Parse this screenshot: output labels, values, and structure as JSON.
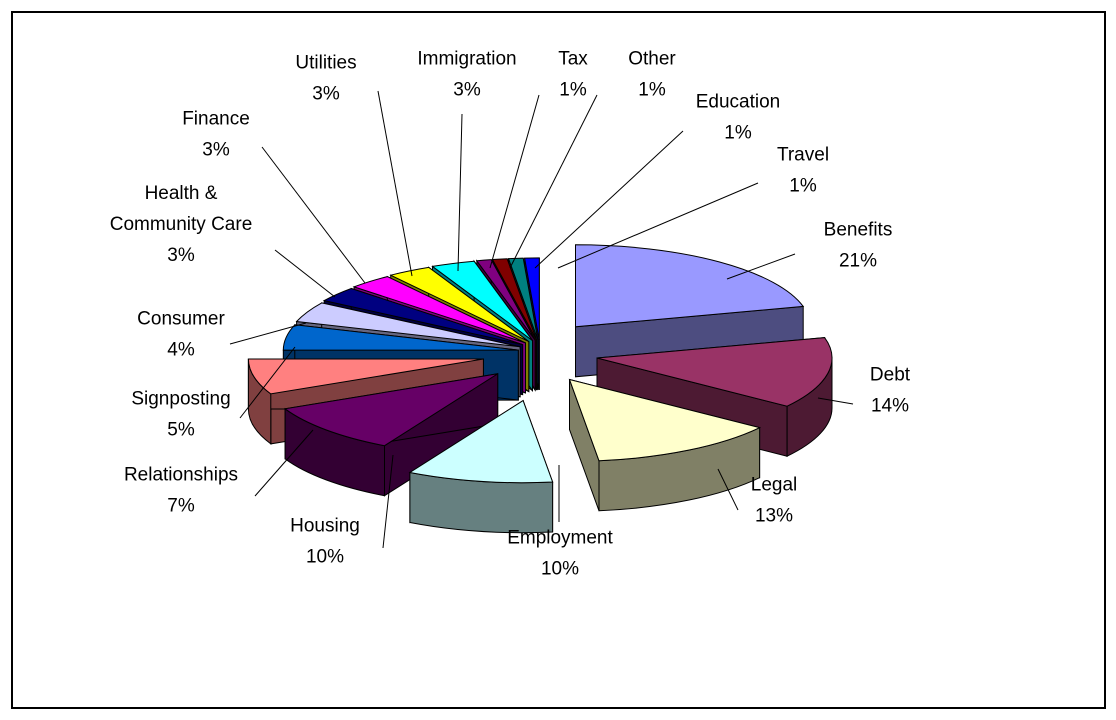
{
  "chart_data": {
    "type": "pie",
    "title": "",
    "style": "3d-exploded",
    "legend": "none",
    "slices": [
      {
        "label": "Benefits",
        "value": 21,
        "value_label": "21%",
        "color": "#9999ff",
        "side": "#4d4d80"
      },
      {
        "label": "Debt",
        "value": 14,
        "value_label": "14%",
        "color": "#993366",
        "side": "#4d1a33"
      },
      {
        "label": "Legal",
        "value": 13,
        "value_label": "13%",
        "color": "#ffffcc",
        "side": "#808066"
      },
      {
        "label": "Employment",
        "value": 10,
        "value_label": "10%",
        "color": "#ccffff",
        "side": "#668080"
      },
      {
        "label": "Housing",
        "value": 10,
        "value_label": "10%",
        "color": "#660066",
        "side": "#330033"
      },
      {
        "label": "Relationships",
        "value": 7,
        "value_label": "7%",
        "color": "#ff8080",
        "side": "#804040"
      },
      {
        "label": "Signposting",
        "value": 5,
        "value_label": "5%",
        "color": "#0066cc",
        "side": "#003366"
      },
      {
        "label": "Consumer",
        "value": 4,
        "value_label": "4%",
        "color": "#ccccff",
        "side": "#666680"
      },
      {
        "label": "Health & Community Care",
        "value": 3,
        "value_label": "3%",
        "color": "#000080",
        "side": "#000040"
      },
      {
        "label": "Finance",
        "value": 3,
        "value_label": "3%",
        "color": "#ff00ff",
        "side": "#800080"
      },
      {
        "label": "Utilities",
        "value": 3,
        "value_label": "3%",
        "color": "#ffff00",
        "side": "#808000"
      },
      {
        "label": "Immigration",
        "value": 3,
        "value_label": "3%",
        "color": "#00ffff",
        "side": "#008080"
      },
      {
        "label": "Tax",
        "value": 1,
        "value_label": "1%",
        "color": "#800080",
        "side": "#400040"
      },
      {
        "label": "Other",
        "value": 1,
        "value_label": "1%",
        "color": "#800000",
        "side": "#400000"
      },
      {
        "label": "Education",
        "value": 1,
        "value_label": "1%",
        "color": "#008080",
        "side": "#004040"
      },
      {
        "label": "Travel",
        "value": 1,
        "value_label": "1%",
        "color": "#0000ff",
        "side": "#000080"
      }
    ]
  }
}
